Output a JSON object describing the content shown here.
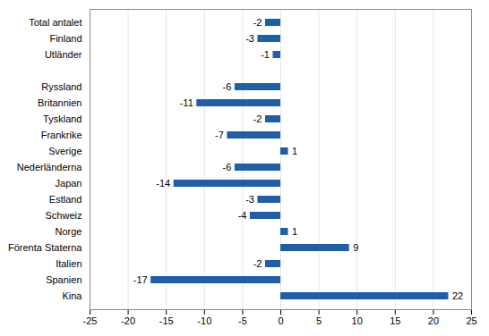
{
  "chart_data": {
    "type": "bar",
    "orientation": "horizontal",
    "categories": [
      "Total antalet",
      "Finland",
      "Utländer",
      null,
      "Ryssland",
      "Britannien",
      "Tyskland",
      "Frankrike",
      "Sverige",
      "Nederländerna",
      "Japan",
      "Estland",
      "Schweiz",
      "Norge",
      "Förenta Staterna",
      "Italien",
      "Spanien",
      "Kina"
    ],
    "values": [
      -2,
      -3,
      -1,
      null,
      -6,
      -11,
      -2,
      -7,
      1,
      -6,
      -14,
      -3,
      -4,
      1,
      9,
      -2,
      -17,
      22
    ],
    "color": "#1f5fa8",
    "xlim": [
      -25,
      25
    ],
    "xticks": [
      -25,
      -20,
      -15,
      -10,
      -5,
      0,
      5,
      10,
      15,
      20,
      25
    ],
    "grid": true,
    "data_labels": true
  }
}
